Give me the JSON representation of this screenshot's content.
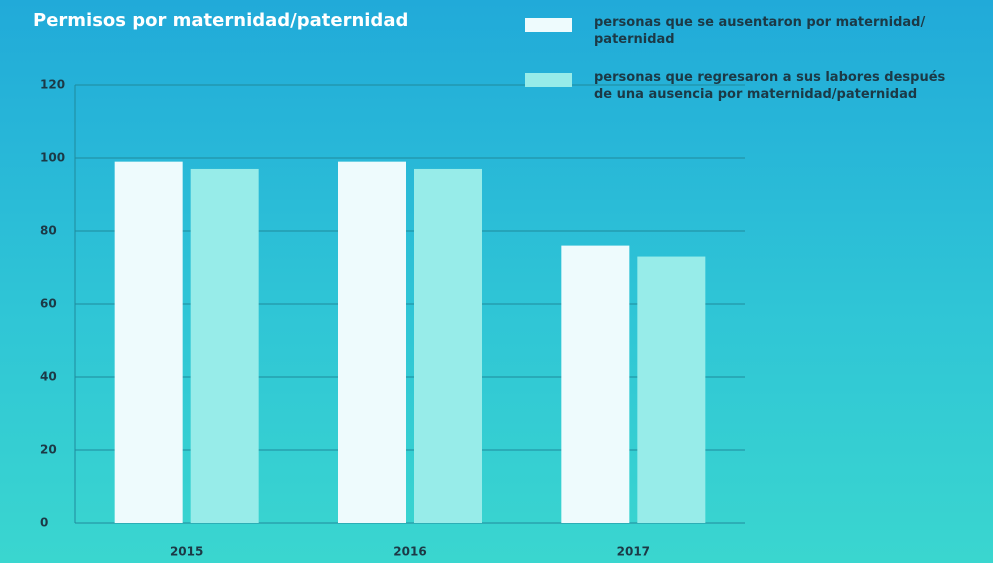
{
  "chart_data": {
    "type": "bar",
    "title": "Permisos por maternidad/paternidad",
    "categories": [
      "2015",
      "2016",
      "2017"
    ],
    "series": [
      {
        "name": "personas que se ausentaron por maternidad/ paternidad",
        "color": "#eefbfd",
        "values": [
          99,
          99,
          76
        ]
      },
      {
        "name": "personas que regresaron a sus labores después de una ausencia por maternidad/paternidad",
        "color": "#97ece9",
        "values": [
          97,
          97,
          73
        ]
      }
    ],
    "ylim": [
      0,
      120
    ],
    "yticks": [
      0,
      20,
      40,
      60,
      80,
      100,
      120
    ],
    "grid": true,
    "legend": "top-right"
  }
}
